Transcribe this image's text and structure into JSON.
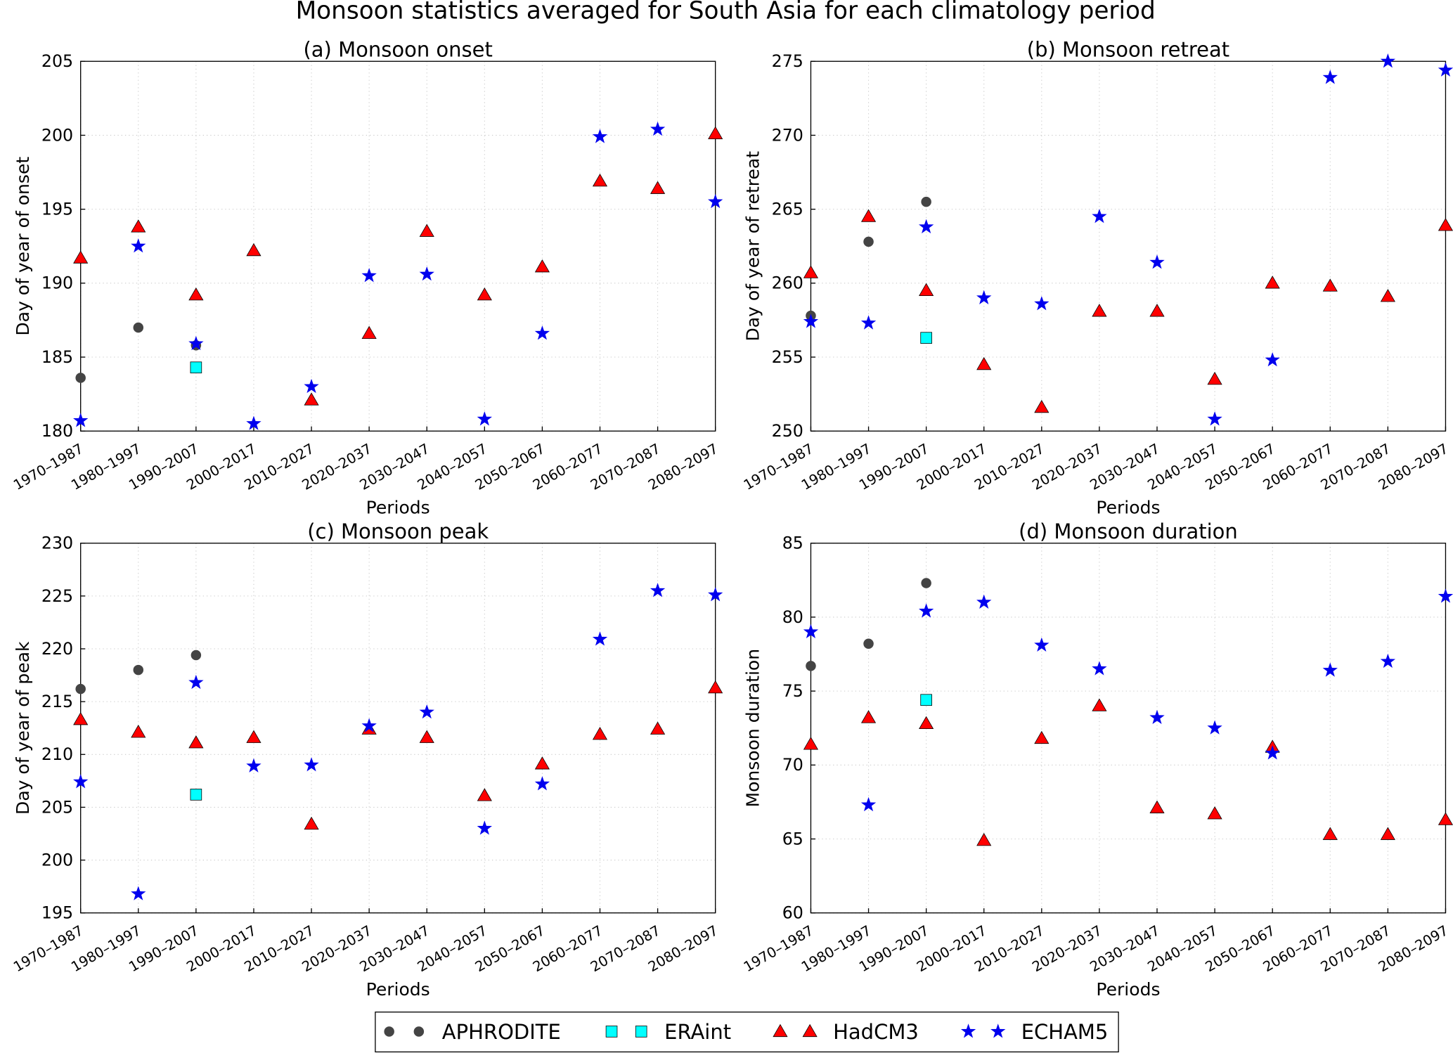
{
  "chart_data": [
    {
      "type": "scatter",
      "title": "(a) Monsoon onset",
      "xlabel": "Periods",
      "ylabel": "Day of year of onset",
      "ylim": [
        180,
        205
      ],
      "yticks": [
        180,
        185,
        190,
        195,
        200,
        205
      ],
      "grid": true,
      "series": [
        {
          "name": "APHRODITE",
          "values": [
            183.6,
            187.0,
            185.8,
            null,
            null,
            null,
            null,
            null,
            null,
            null,
            null,
            null
          ]
        },
        {
          "name": "ERAint",
          "values": [
            null,
            null,
            184.3,
            null,
            null,
            null,
            null,
            null,
            null,
            null,
            null,
            null
          ]
        },
        {
          "name": "HadCM3",
          "values": [
            191.7,
            193.8,
            189.2,
            192.2,
            182.1,
            186.6,
            193.5,
            189.2,
            191.1,
            196.9,
            196.4,
            200.1
          ]
        },
        {
          "name": "ECHAM5",
          "values": [
            180.7,
            192.5,
            185.9,
            180.5,
            183.0,
            190.5,
            190.6,
            180.8,
            186.6,
            199.9,
            200.4,
            195.5
          ]
        }
      ]
    },
    {
      "type": "scatter",
      "title": "(b) Monsoon retreat",
      "xlabel": "Periods",
      "ylabel": "Day of year of retreat",
      "ylim": [
        250,
        275
      ],
      "yticks": [
        250,
        255,
        260,
        265,
        270,
        275
      ],
      "grid": true,
      "series": [
        {
          "name": "APHRODITE",
          "values": [
            257.8,
            262.8,
            265.5,
            null,
            null,
            null,
            null,
            null,
            null,
            null,
            null,
            null
          ]
        },
        {
          "name": "ERAint",
          "values": [
            null,
            null,
            256.3,
            null,
            null,
            null,
            null,
            null,
            null,
            null,
            null,
            null
          ]
        },
        {
          "name": "HadCM3",
          "values": [
            260.7,
            264.5,
            259.5,
            254.5,
            251.6,
            258.1,
            258.1,
            253.5,
            260.0,
            259.8,
            259.1,
            263.9
          ]
        },
        {
          "name": "ECHAM5",
          "values": [
            257.4,
            257.3,
            263.8,
            259.0,
            258.6,
            264.5,
            261.4,
            250.8,
            254.8,
            273.9,
            275.0,
            274.4
          ]
        }
      ]
    },
    {
      "type": "scatter",
      "title": "(c) Monsoon peak",
      "xlabel": "Periods",
      "ylabel": "Day of year of peak",
      "ylim": [
        195,
        230
      ],
      "yticks": [
        195,
        200,
        205,
        210,
        215,
        220,
        225,
        230
      ],
      "grid": true,
      "series": [
        {
          "name": "APHRODITE",
          "values": [
            216.2,
            218.0,
            219.4,
            null,
            null,
            null,
            null,
            null,
            null,
            null,
            null,
            null
          ]
        },
        {
          "name": "ERAint",
          "values": [
            null,
            null,
            206.2,
            null,
            null,
            null,
            null,
            null,
            null,
            null,
            null,
            null
          ]
        },
        {
          "name": "HadCM3",
          "values": [
            213.3,
            212.1,
            211.1,
            211.6,
            203.4,
            212.4,
            211.6,
            206.1,
            209.1,
            211.9,
            212.4,
            216.3
          ]
        },
        {
          "name": "ECHAM5",
          "values": [
            207.4,
            196.8,
            216.8,
            208.9,
            209.0,
            212.7,
            214.0,
            203.0,
            207.2,
            220.9,
            225.5,
            225.1
          ]
        }
      ]
    },
    {
      "type": "scatter",
      "title": "(d) Monsoon duration",
      "xlabel": "Periods",
      "ylabel": "Monsoon duration",
      "ylim": [
        60,
        85
      ],
      "yticks": [
        60,
        65,
        70,
        75,
        80,
        85
      ],
      "grid": true,
      "series": [
        {
          "name": "APHRODITE",
          "values": [
            76.7,
            78.2,
            82.3,
            null,
            null,
            null,
            null,
            null,
            null,
            null,
            null,
            null
          ]
        },
        {
          "name": "ERAint",
          "values": [
            null,
            null,
            74.4,
            null,
            null,
            null,
            null,
            null,
            null,
            null,
            null,
            null
          ]
        },
        {
          "name": "HadCM3",
          "values": [
            71.4,
            73.2,
            72.8,
            64.9,
            71.8,
            74.0,
            67.1,
            66.7,
            71.2,
            65.3,
            65.3,
            66.3
          ]
        },
        {
          "name": "ECHAM5",
          "values": [
            79.0,
            67.3,
            80.4,
            81.0,
            78.1,
            76.5,
            73.2,
            72.5,
            70.8,
            76.4,
            77.0,
            81.4
          ]
        }
      ]
    }
  ],
  "categories": [
    "1970–1987",
    "1980–1997",
    "1990–2007",
    "2000–2017",
    "2010–2027",
    "2020–2037",
    "2030–2047",
    "2040–2057",
    "2050–2067",
    "2060–2077",
    "2070–2087",
    "2080–2097"
  ],
  "suptitle": "Monsoon statistics averaged for South Asia for each climatology period",
  "legend": {
    "placement": "bottom-center",
    "entries": [
      {
        "name": "APHRODITE",
        "marker": "circle",
        "color": "#444444"
      },
      {
        "name": "ERAint",
        "marker": "square",
        "color": "#00ffff"
      },
      {
        "name": "HadCM3",
        "marker": "triangle",
        "color": "#ff0000"
      },
      {
        "name": "ECHAM5",
        "marker": "star",
        "color": "#0000ee"
      }
    ]
  }
}
